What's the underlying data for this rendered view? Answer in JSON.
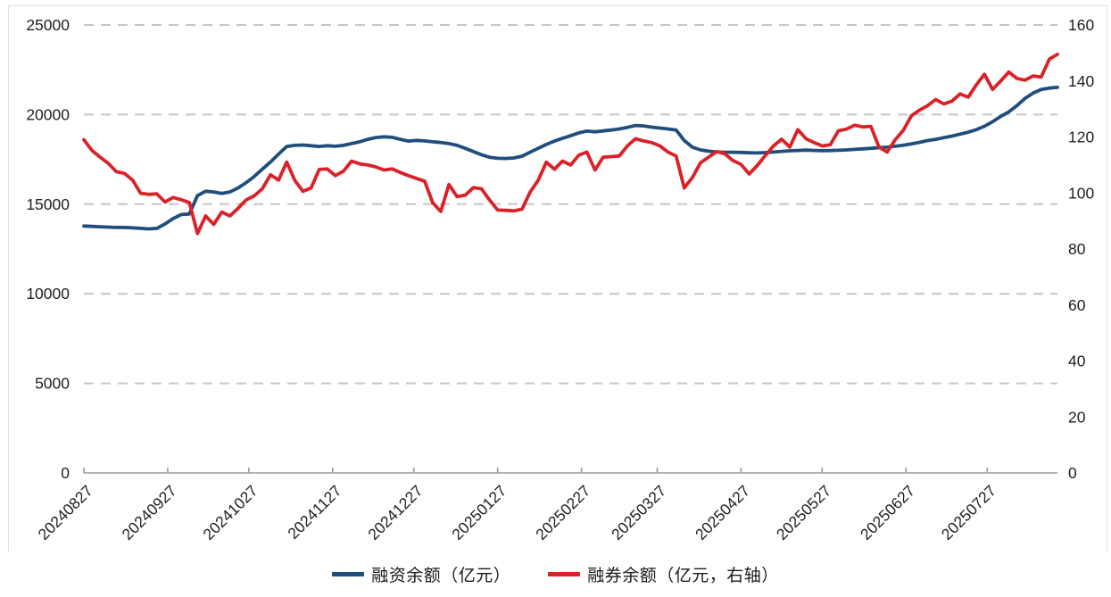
{
  "chart_data": {
    "type": "line",
    "title": "",
    "x_axis": {
      "tick_labels": [
        "20240827",
        "20240927",
        "20241027",
        "20241127",
        "20241227",
        "20250127",
        "20250227",
        "20250327",
        "20250427",
        "20250527",
        "20250627",
        "20250727"
      ],
      "tick_days": [
        0,
        31,
        61,
        92,
        122,
        153,
        184,
        212,
        243,
        273,
        304,
        334
      ],
      "total_days": 360,
      "label_rotation_deg": -45
    },
    "left_axis": {
      "min": 0,
      "max": 25000,
      "tick_step": 5000,
      "ticks": [
        0,
        5000,
        10000,
        15000,
        20000,
        25000
      ]
    },
    "right_axis": {
      "min": 0,
      "max": 160,
      "tick_step": 20,
      "ticks": [
        0,
        20,
        40,
        60,
        80,
        100,
        120,
        140,
        160
      ]
    },
    "grid": {
      "horizontal_dashed": true,
      "vertical": false
    },
    "legend_position": "bottom-center",
    "sample_interval_days": 3,
    "series": [
      {
        "name": "融资余额（亿元）",
        "axis": "left",
        "color": "#1f4e7c",
        "values": [
          13780,
          13760,
          13740,
          13720,
          13700,
          13700,
          13680,
          13650,
          13620,
          13650,
          13900,
          14200,
          14420,
          14450,
          15480,
          15720,
          15680,
          15600,
          15680,
          15900,
          16200,
          16550,
          16950,
          17350,
          17800,
          18220,
          18280,
          18300,
          18260,
          18220,
          18260,
          18230,
          18280,
          18380,
          18480,
          18620,
          18720,
          18760,
          18730,
          18620,
          18520,
          18560,
          18530,
          18480,
          18440,
          18380,
          18280,
          18120,
          17940,
          17760,
          17620,
          17560,
          17550,
          17580,
          17680,
          17900,
          18120,
          18330,
          18520,
          18680,
          18820,
          18980,
          19080,
          19040,
          19090,
          19140,
          19200,
          19290,
          19390,
          19370,
          19300,
          19250,
          19200,
          19140,
          18550,
          18180,
          18030,
          17960,
          17910,
          17900,
          17900,
          17890,
          17870,
          17860,
          17880,
          17910,
          17950,
          17980,
          18000,
          18020,
          18000,
          17990,
          17995,
          18010,
          18030,
          18060,
          18090,
          18120,
          18150,
          18180,
          18230,
          18290,
          18360,
          18450,
          18550,
          18620,
          18710,
          18800,
          18910,
          19020,
          19160,
          19350,
          19600,
          19900,
          20150,
          20500,
          20900,
          21200,
          21400,
          21480,
          21520
        ]
      },
      {
        "name": "融券余额（亿元，右轴）",
        "axis": "right",
        "color": "#da2128",
        "values": [
          119.0,
          115.2,
          112.8,
          110.6,
          107.6,
          107.0,
          104.6,
          99.9,
          99.5,
          99.7,
          96.8,
          98.4,
          97.6,
          96.6,
          85.5,
          91.8,
          88.8,
          93.2,
          91.8,
          94.5,
          97.5,
          99.0,
          101.5,
          106.5,
          104.6,
          111.0,
          104.5,
          100.6,
          101.8,
          108.4,
          108.6,
          106.2,
          107.8,
          111.4,
          110.4,
          110.0,
          109.3,
          108.2,
          108.6,
          107.3,
          106.2,
          105.2,
          104.2,
          96.5,
          93.4,
          103.0,
          98.7,
          99.2,
          101.9,
          101.5,
          97.5,
          93.9,
          93.8,
          93.6,
          94.2,
          100.3,
          104.5,
          111.0,
          108.5,
          111.4,
          110.0,
          113.5,
          114.6,
          108.2,
          112.8,
          113.0,
          113.2,
          116.8,
          119.4,
          118.6,
          118.0,
          116.8,
          114.6,
          113.2,
          101.8,
          105.5,
          110.8,
          112.8,
          114.8,
          114.0,
          111.6,
          110.2,
          106.8,
          109.8,
          113.4,
          116.8,
          119.2,
          116.4,
          122.6,
          119.4,
          118.0,
          116.8,
          117.2,
          122.2,
          122.8,
          124.2,
          123.6,
          123.8,
          116.4,
          114.6,
          119.0,
          122.4,
          127.6,
          129.6,
          131.2,
          133.4,
          131.8,
          132.8,
          135.4,
          134.2,
          138.6,
          142.4,
          137.0,
          140.0,
          143.2,
          140.9,
          140.3,
          141.8,
          141.4,
          147.8,
          149.5
        ]
      }
    ]
  },
  "colors": {
    "background": "#ffffff",
    "grid": "#c6c6c6",
    "axis_line": "#9b9b9b",
    "tick": "#9b9b9b",
    "text": "#1f1f1f",
    "frame_border": "#e0e0e0",
    "series_financing": "#1f4e7c",
    "series_securities_lending": "#da2128"
  },
  "legend": {
    "items": [
      {
        "label": "融资余额（亿元）",
        "color": "#1f4e7c"
      },
      {
        "label": "融券余额（亿元，右轴）",
        "color": "#da2128"
      }
    ]
  }
}
